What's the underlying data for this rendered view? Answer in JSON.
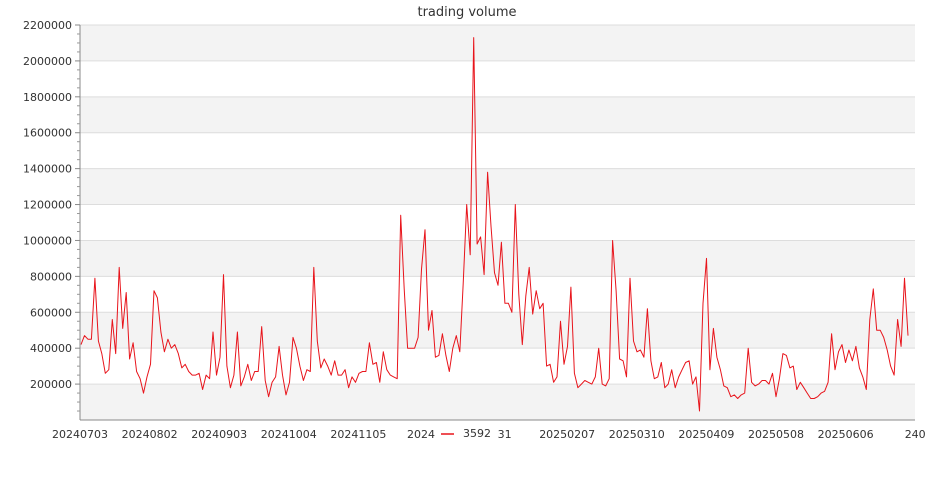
{
  "chart_data": {
    "type": "line",
    "title": "trading volume",
    "xlabel": "",
    "ylabel": "",
    "ylim": [
      0,
      2200000
    ],
    "yticks": [
      200000,
      400000,
      600000,
      800000,
      1000000,
      1200000,
      1400000,
      1600000,
      1800000,
      2000000,
      2200000
    ],
    "ytick_labels": [
      "200000",
      "400000",
      "600000",
      "800000",
      "1000000",
      "1200000",
      "1400000",
      "1600000",
      "1800000",
      "2000000",
      "2200000"
    ],
    "xtick_labels": [
      "20240703",
      "20240802",
      "20240903",
      "20241004",
      "20241105",
      "202412",
      "1231",
      "20250207",
      "20250310",
      "20250409",
      "20250508",
      "20250606",
      "240"
    ],
    "grid": true,
    "band_colors": [
      "#f3f3f3",
      "#ffffff"
    ],
    "legend_position": "bottom-center",
    "series": [
      {
        "name": "3592",
        "color": "#e8141b",
        "values": [
          420000,
          470000,
          450000,
          450000,
          790000,
          440000,
          370000,
          260000,
          280000,
          560000,
          370000,
          850000,
          510000,
          710000,
          340000,
          430000,
          270000,
          230000,
          150000,
          240000,
          310000,
          720000,
          680000,
          490000,
          380000,
          450000,
          400000,
          420000,
          370000,
          290000,
          310000,
          270000,
          250000,
          250000,
          260000,
          170000,
          250000,
          230000,
          490000,
          250000,
          350000,
          810000,
          300000,
          180000,
          250000,
          490000,
          190000,
          240000,
          310000,
          220000,
          270000,
          270000,
          520000,
          220000,
          130000,
          210000,
          240000,
          410000,
          250000,
          140000,
          210000,
          460000,
          400000,
          300000,
          220000,
          280000,
          270000,
          850000,
          440000,
          290000,
          340000,
          300000,
          250000,
          330000,
          250000,
          250000,
          280000,
          180000,
          240000,
          210000,
          260000,
          270000,
          270000,
          430000,
          310000,
          320000,
          210000,
          380000,
          280000,
          250000,
          240000,
          230000,
          1140000,
          730000,
          400000,
          400000,
          400000,
          460000,
          840000,
          1060000,
          500000,
          610000,
          350000,
          360000,
          480000,
          360000,
          270000,
          400000,
          470000,
          380000,
          760000,
          1200000,
          920000,
          2130000,
          980000,
          1020000,
          810000,
          1380000,
          1080000,
          820000,
          750000,
          990000,
          650000,
          650000,
          600000,
          1200000,
          700000,
          420000,
          690000,
          850000,
          590000,
          720000,
          620000,
          650000,
          300000,
          310000,
          210000,
          240000,
          550000,
          310000,
          410000,
          740000,
          260000,
          180000,
          200000,
          220000,
          210000,
          200000,
          240000,
          400000,
          200000,
          190000,
          230000,
          1000000,
          720000,
          340000,
          330000,
          240000,
          790000,
          440000,
          380000,
          390000,
          350000,
          620000,
          330000,
          230000,
          240000,
          320000,
          180000,
          200000,
          280000,
          180000,
          240000,
          280000,
          320000,
          330000,
          200000,
          240000,
          50000,
          650000,
          900000,
          280000,
          510000,
          350000,
          280000,
          190000,
          180000,
          130000,
          140000,
          120000,
          140000,
          150000,
          400000,
          210000,
          190000,
          200000,
          220000,
          220000,
          200000,
          260000,
          130000,
          230000,
          370000,
          360000,
          290000,
          300000,
          170000,
          210000,
          180000,
          150000,
          120000,
          120000,
          130000,
          150000,
          160000,
          210000,
          480000,
          280000,
          380000,
          420000,
          320000,
          390000,
          330000,
          410000,
          290000,
          240000,
          170000,
          560000,
          730000,
          500000,
          500000,
          460000,
          390000,
          300000,
          250000,
          560000,
          410000,
          790000,
          470000
        ]
      }
    ]
  }
}
